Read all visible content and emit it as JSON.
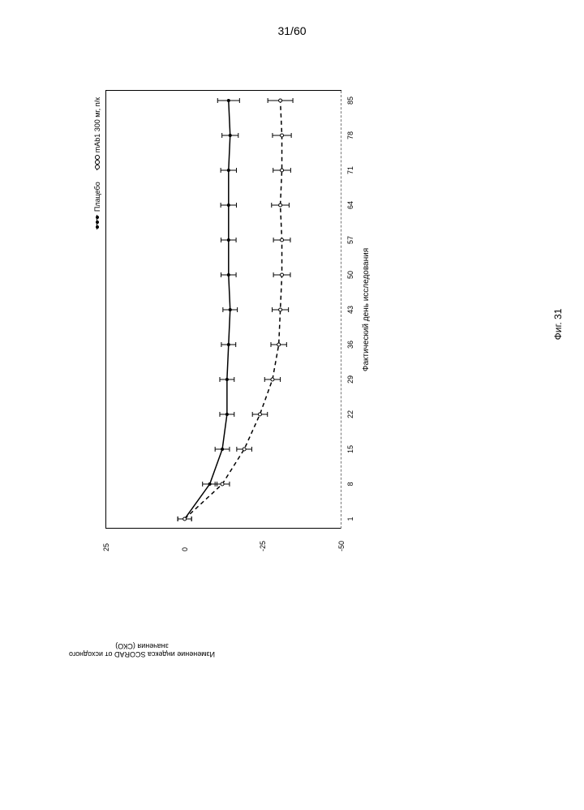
{
  "page_number": "31/60",
  "figure_caption": "Фиг. 31",
  "chart": {
    "type": "line",
    "y_label_line1": "Изменение индекса SCORAD от исходного",
    "y_label_line2": "значения (СКО)",
    "x_label": "Фактический день исследования",
    "ylim": [
      -50,
      25
    ],
    "y_ticks": [
      25,
      0,
      -25,
      -50
    ],
    "x_ticks": [
      1,
      8,
      15,
      22,
      29,
      36,
      43,
      50,
      57,
      64,
      71,
      78,
      85
    ],
    "xlim": [
      1,
      85
    ],
    "background_color": "#ffffff",
    "axis_color": "#000000",
    "legend": {
      "placebo_label": "Плацебо",
      "treatment_label": "mAb1 300 мг, п/к"
    },
    "series": {
      "placebo": {
        "name": "Плацебо",
        "line_style": "solid",
        "marker": "filled-circle",
        "color": "#000000",
        "marker_size": 4,
        "line_width": 1.5,
        "x": [
          1,
          8,
          15,
          22,
          29,
          36,
          43,
          50,
          57,
          64,
          71,
          78,
          85
        ],
        "y": [
          0,
          -8,
          -12,
          -13.5,
          -13.5,
          -14,
          -14.5,
          -14,
          -14,
          -14,
          -14,
          -14.5,
          -14
        ],
        "err": [
          2.2,
          2.3,
          2.3,
          2.3,
          2.3,
          2.3,
          2.3,
          2.4,
          2.4,
          2.5,
          2.5,
          2.6,
          3.5
        ]
      },
      "treatment": {
        "name": "mAb1 300 мг, п/к",
        "line_style": "dashed",
        "marker": "open-circle",
        "color": "#000000",
        "marker_size": 4,
        "line_width": 1.5,
        "x": [
          1,
          8,
          15,
          22,
          29,
          36,
          43,
          50,
          57,
          64,
          71,
          78,
          85
        ],
        "y": [
          0,
          -12,
          -19,
          -24,
          -28,
          -30,
          -30.5,
          -31,
          -31,
          -30.5,
          -31,
          -31,
          -30.5
        ],
        "err": [
          2.2,
          2.3,
          2.4,
          2.4,
          2.5,
          2.5,
          2.6,
          2.7,
          2.7,
          2.8,
          2.8,
          3.0,
          4.0
        ]
      }
    }
  }
}
